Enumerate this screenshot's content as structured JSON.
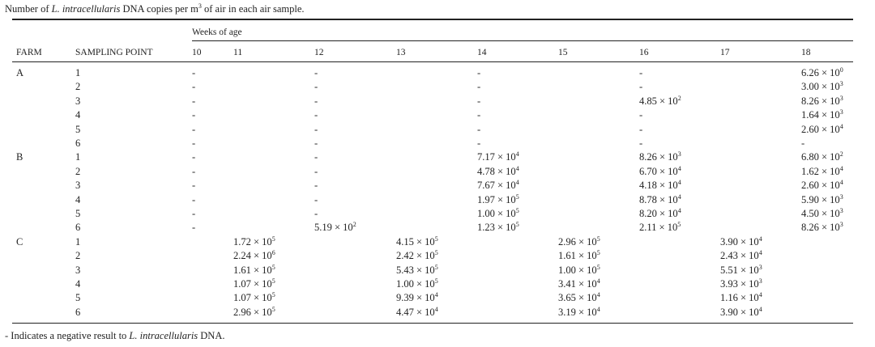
{
  "title": [
    "Number of ",
    "L. intracellularis",
    " DNA copies per m",
    "3",
    " of air in each air sample."
  ],
  "table": {
    "group_header": "Weeks of age",
    "columns": [
      "FARM",
      "SAMPLING POINT",
      "10",
      "11",
      "12",
      "13",
      "14",
      "15",
      "16",
      "17",
      "18"
    ],
    "rows": [
      [
        "A",
        "1",
        "-",
        null,
        "-",
        null,
        "-",
        null,
        "-",
        null,
        [
          "6.26 × 10",
          "0"
        ]
      ],
      [
        null,
        "2",
        "-",
        null,
        "-",
        null,
        "-",
        null,
        "-",
        null,
        [
          "3.00 × 10",
          "3"
        ]
      ],
      [
        null,
        "3",
        "-",
        null,
        "-",
        null,
        "-",
        null,
        [
          "4.85 × 10",
          "2"
        ],
        null,
        [
          "8.26 × 10",
          "3"
        ]
      ],
      [
        null,
        "4",
        "-",
        null,
        "-",
        null,
        "-",
        null,
        "-",
        null,
        [
          "1.64 × 10",
          "3"
        ]
      ],
      [
        null,
        "5",
        "-",
        null,
        "-",
        null,
        "-",
        null,
        "-",
        null,
        [
          "2.60 × 10",
          "4"
        ]
      ],
      [
        null,
        "6",
        "-",
        null,
        "-",
        null,
        "-",
        null,
        "-",
        null,
        "-"
      ],
      [
        "B",
        "1",
        "-",
        null,
        "-",
        null,
        [
          "7.17 × 10",
          "4"
        ],
        null,
        [
          "8.26 × 10",
          "3"
        ],
        null,
        [
          "6.80 × 10",
          "2"
        ]
      ],
      [
        null,
        "2",
        "-",
        null,
        "-",
        null,
        [
          "4.78 × 10",
          "4"
        ],
        null,
        [
          "6.70 × 10",
          "4"
        ],
        null,
        [
          "1.62 × 10",
          "4"
        ]
      ],
      [
        null,
        "3",
        "-",
        null,
        "-",
        null,
        [
          "7.67 × 10",
          "4"
        ],
        null,
        [
          "4.18 × 10",
          "4"
        ],
        null,
        [
          "2.60 × 10",
          "4"
        ]
      ],
      [
        null,
        "4",
        "-",
        null,
        "-",
        null,
        [
          "1.97 × 10",
          "5"
        ],
        null,
        [
          "8.78 × 10",
          "4"
        ],
        null,
        [
          "5.90 × 10",
          "3"
        ]
      ],
      [
        null,
        "5",
        "-",
        null,
        "-",
        null,
        [
          "1.00 × 10",
          "5"
        ],
        null,
        [
          "8.20 × 10",
          "4"
        ],
        null,
        [
          "4.50 × 10",
          "3"
        ]
      ],
      [
        null,
        "6",
        "-",
        null,
        [
          "5.19 × 10",
          "2"
        ],
        null,
        [
          "1.23 × 10",
          "5"
        ],
        null,
        [
          "2.11 × 10",
          "5"
        ],
        null,
        [
          "8.26 × 10",
          "3"
        ]
      ],
      [
        "C",
        "1",
        null,
        [
          "1.72 × 10",
          "5"
        ],
        null,
        [
          "4.15 × 10",
          "5"
        ],
        null,
        [
          "2.96 × 10",
          "5"
        ],
        null,
        [
          "3.90 × 10",
          "4"
        ],
        null
      ],
      [
        null,
        "2",
        null,
        [
          "2.24 × 10",
          "6"
        ],
        null,
        [
          "2.42 × 10",
          "5"
        ],
        null,
        [
          "1.61 × 10",
          "5"
        ],
        null,
        [
          "2.43 × 10",
          "4"
        ],
        null
      ],
      [
        null,
        "3",
        null,
        [
          "1.61 × 10",
          "5"
        ],
        null,
        [
          "5.43 × 10",
          "5"
        ],
        null,
        [
          "1.00 × 10",
          "5"
        ],
        null,
        [
          "5.51 × 10",
          "3"
        ],
        null
      ],
      [
        null,
        "4",
        null,
        [
          "1.07 × 10",
          "5"
        ],
        null,
        [
          "1.00 × 10",
          "5"
        ],
        null,
        [
          "3.41 × 10",
          "4"
        ],
        null,
        [
          "3.93 × 10",
          "3"
        ],
        null
      ],
      [
        null,
        "5",
        null,
        [
          "1.07 × 10",
          "5"
        ],
        null,
        [
          "9.39 × 10",
          "4"
        ],
        null,
        [
          "3.65 × 10",
          "4"
        ],
        null,
        [
          "1.16 × 10",
          "4"
        ],
        null
      ],
      [
        null,
        "6",
        null,
        [
          "2.96 × 10",
          "5"
        ],
        null,
        [
          "4.47 × 10",
          "4"
        ],
        null,
        [
          "3.19 × 10",
          "4"
        ],
        null,
        [
          "3.90 × 10",
          "4"
        ],
        null
      ]
    ]
  },
  "footnote": [
    "- Indicates a negative result to ",
    "L. intracellularis",
    " DNA."
  ]
}
